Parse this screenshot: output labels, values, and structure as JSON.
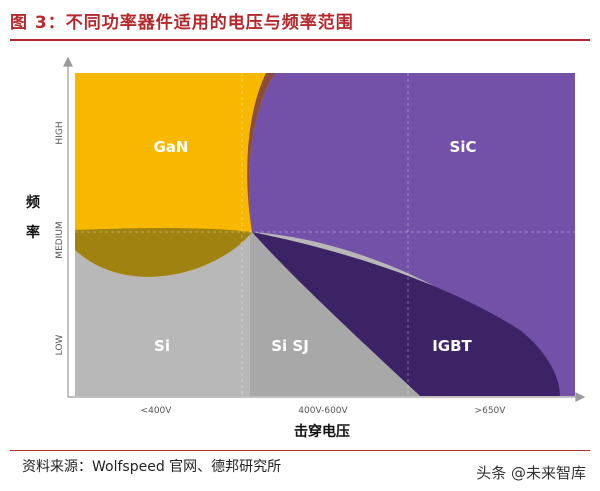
{
  "figure": {
    "title": "图 3：不同功率器件适用的电压与频率范围",
    "source": "资料来源：Wolfspeed 官网、德邦研究所",
    "watermark": "头条 @未来智库"
  },
  "chart_data": {
    "type": "area",
    "xlabel": "击穿电压",
    "ylabel": "频率",
    "x_ticks": [
      "<400V",
      "400V-600V",
      ">650V"
    ],
    "y_ticks": [
      "LOW",
      "MEDIUM",
      "HIGH"
    ],
    "grid": true,
    "regions": [
      {
        "name": "GaN",
        "color": "#f8b800"
      },
      {
        "name": "SiC",
        "color": "#7351a8"
      },
      {
        "name": "Si",
        "color": "#b8b8b8"
      },
      {
        "name": "Si SJ",
        "color": "#9a9a9a"
      },
      {
        "name": "IGBT",
        "color": "#3c2366"
      }
    ]
  }
}
